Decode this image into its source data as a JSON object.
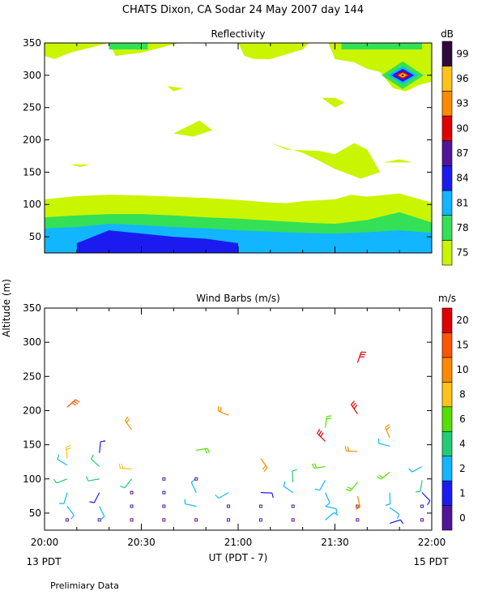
{
  "header": {
    "title": "CHATS Dixon, CA  Sodar  24 May 2007  day 144",
    "ylabel": "Altitude (m)",
    "xlabel": "UT  (PDT - 7)",
    "left_note": "13 PDT",
    "right_note": "15 PDT",
    "footer": "Prelimiary Data"
  },
  "chart_data": [
    {
      "type": "heatmap",
      "title": "Reflectivity",
      "colorbar_unit": "dB",
      "colorbar_ticks": [
        "75",
        "78",
        "81",
        "84",
        "87",
        "90",
        "93",
        "96",
        "99"
      ],
      "colorbar_colors": [
        "#c9f500",
        "#33e056",
        "#12b6ff",
        "#1b1bf0",
        "#52159a",
        "#e10000",
        "#ff8a00",
        "#ffc21a",
        "#2e0b3c"
      ],
      "x_ticks": [
        "20:00",
        "20:30",
        "21:00",
        "21:30",
        "22:00"
      ],
      "x_range_minutes": [
        0,
        120
      ],
      "ylim": [
        25,
        350
      ],
      "y_ticks": [
        50,
        100,
        150,
        200,
        250,
        300,
        350
      ],
      "layers": [
        {
          "level": "75+",
          "color": "#c9f500",
          "top": [
            [
              0,
              108
            ],
            [
              10,
              113
            ],
            [
              20,
              115
            ],
            [
              30,
              114
            ],
            [
              40,
              112
            ],
            [
              50,
              110
            ],
            [
              60,
              107
            ],
            [
              70,
              103
            ],
            [
              75,
              102
            ],
            [
              80,
              105
            ],
            [
              90,
              108
            ],
            [
              95,
              115
            ],
            [
              100,
              112
            ],
            [
              110,
              117
            ],
            [
              120,
              103
            ]
          ]
        },
        {
          "level": "78+",
          "color": "#33e056",
          "top": [
            [
              0,
              80
            ],
            [
              10,
              83
            ],
            [
              20,
              85
            ],
            [
              30,
              85
            ],
            [
              40,
              83
            ],
            [
              50,
              80
            ],
            [
              60,
              78
            ],
            [
              70,
              75
            ],
            [
              80,
              72
            ],
            [
              90,
              70
            ],
            [
              100,
              76
            ],
            [
              110,
              88
            ],
            [
              120,
              72
            ]
          ]
        },
        {
          "level": "81+",
          "color": "#12b6ff",
          "top": [
            [
              0,
              63
            ],
            [
              10,
              65
            ],
            [
              20,
              70
            ],
            [
              30,
              68
            ],
            [
              40,
              65
            ],
            [
              50,
              63
            ],
            [
              60,
              60
            ],
            [
              70,
              58
            ],
            [
              80,
              56
            ],
            [
              90,
              55
            ],
            [
              100,
              57
            ],
            [
              110,
              60
            ],
            [
              120,
              56
            ]
          ]
        },
        {
          "level": "84+",
          "color": "#1b1bf0",
          "top": [
            [
              10,
              40
            ],
            [
              20,
              60
            ],
            [
              30,
              55
            ],
            [
              40,
              50
            ],
            [
              50,
              47
            ],
            [
              60,
              40
            ]
          ]
        }
      ],
      "blobs": [
        {
          "level": "78+",
          "color": "#33e056",
          "time_range": [
            20,
            32
          ],
          "alt_range": [
            340,
            350
          ]
        },
        {
          "level": "78+",
          "color": "#33e056",
          "time_range": [
            92,
            117
          ],
          "alt_range": [
            340,
            350
          ]
        },
        {
          "level": "99",
          "color": "#2e0b3c",
          "time": 111,
          "alt": 300,
          "note": "diamond peak near 21:51 at 300 m"
        }
      ]
    },
    {
      "type": "scatter",
      "title": "Wind Barbs (m/s)",
      "colorbar_unit": "m/s",
      "colorbar_ticks": [
        "0",
        "1",
        "2",
        "4",
        "6",
        "8",
        "10",
        "15",
        "20"
      ],
      "colorbar_colors": [
        "#52159a",
        "#1b1bf0",
        "#12b6ff",
        "#22cc77",
        "#55e000",
        "#ffc21a",
        "#ff8a00",
        "#ff5500",
        "#e10000"
      ],
      "x_ticks": [
        "20:00",
        "20:30",
        "21:00",
        "21:30",
        "22:00"
      ],
      "x_range_minutes": [
        0,
        120
      ],
      "ylim": [
        25,
        350
      ],
      "y_ticks": [
        50,
        100,
        150,
        200,
        250,
        300,
        350
      ],
      "points": [
        {
          "t": 7,
          "alt": 40,
          "speed": 0
        },
        {
          "t": 7,
          "alt": 60,
          "speed": 3
        },
        {
          "t": 7,
          "alt": 80,
          "speed": 3
        },
        {
          "t": 7,
          "alt": 100,
          "speed": 4
        },
        {
          "t": 7,
          "alt": 120,
          "speed": 3
        },
        {
          "t": 7,
          "alt": 130,
          "speed": 9
        },
        {
          "t": 7,
          "alt": 205,
          "speed": 15
        },
        {
          "t": 17,
          "alt": 40,
          "speed": 0
        },
        {
          "t": 17,
          "alt": 60,
          "speed": 3
        },
        {
          "t": 17,
          "alt": 80,
          "speed": 1
        },
        {
          "t": 17,
          "alt": 100,
          "speed": 4
        },
        {
          "t": 17,
          "alt": 118,
          "speed": 4
        },
        {
          "t": 17,
          "alt": 138,
          "speed": 1
        },
        {
          "t": 27,
          "alt": 40,
          "speed": 0
        },
        {
          "t": 27,
          "alt": 60,
          "speed": 0
        },
        {
          "t": 27,
          "alt": 80,
          "speed": 0
        },
        {
          "t": 27,
          "alt": 100,
          "speed": 5
        },
        {
          "t": 27,
          "alt": 115,
          "speed": 9
        },
        {
          "t": 27,
          "alt": 172,
          "speed": 10
        },
        {
          "t": 37,
          "alt": 40,
          "speed": 0
        },
        {
          "t": 37,
          "alt": 60,
          "speed": 0
        },
        {
          "t": 37,
          "alt": 80,
          "speed": 0
        },
        {
          "t": 37,
          "alt": 100,
          "speed": 0
        },
        {
          "t": 47,
          "alt": 40,
          "speed": 0
        },
        {
          "t": 47,
          "alt": 60,
          "speed": 3
        },
        {
          "t": 47,
          "alt": 80,
          "speed": 3
        },
        {
          "t": 47,
          "alt": 100,
          "speed": 0
        },
        {
          "t": 47,
          "alt": 142,
          "speed": 6
        },
        {
          "t": 57,
          "alt": 40,
          "speed": 0
        },
        {
          "t": 57,
          "alt": 60,
          "speed": 0
        },
        {
          "t": 57,
          "alt": 80,
          "speed": 3
        },
        {
          "t": 57,
          "alt": 193,
          "speed": 10
        },
        {
          "t": 67,
          "alt": 40,
          "speed": 0
        },
        {
          "t": 67,
          "alt": 60,
          "speed": 0
        },
        {
          "t": 67,
          "alt": 80,
          "speed": 1
        },
        {
          "t": 67,
          "alt": 130,
          "speed": 10
        },
        {
          "t": 77,
          "alt": 40,
          "speed": 0
        },
        {
          "t": 77,
          "alt": 60,
          "speed": 0
        },
        {
          "t": 77,
          "alt": 80,
          "speed": 3
        },
        {
          "t": 77,
          "alt": 95,
          "speed": 4
        },
        {
          "t": 87,
          "alt": 40,
          "speed": 2
        },
        {
          "t": 87,
          "alt": 60,
          "speed": 3
        },
        {
          "t": 87,
          "alt": 80,
          "speed": 3
        },
        {
          "t": 87,
          "alt": 98,
          "speed": 3
        },
        {
          "t": 87,
          "alt": 118,
          "speed": 6
        },
        {
          "t": 87,
          "alt": 155,
          "speed": 20
        },
        {
          "t": 87,
          "alt": 175,
          "speed": 6
        },
        {
          "t": 97,
          "alt": 40,
          "speed": 0
        },
        {
          "t": 97,
          "alt": 60,
          "speed": 0
        },
        {
          "t": 97,
          "alt": 75,
          "speed": 10
        },
        {
          "t": 97,
          "alt": 95,
          "speed": 6
        },
        {
          "t": 97,
          "alt": 140,
          "speed": 10
        },
        {
          "t": 97,
          "alt": 195,
          "speed": 20
        },
        {
          "t": 97,
          "alt": 270,
          "speed": 20
        },
        {
          "t": 107,
          "alt": 35,
          "speed": 1
        },
        {
          "t": 107,
          "alt": 58,
          "speed": 3
        },
        {
          "t": 107,
          "alt": 80,
          "speed": 3
        },
        {
          "t": 107,
          "alt": 110,
          "speed": 6
        },
        {
          "t": 107,
          "alt": 148,
          "speed": 3
        },
        {
          "t": 107,
          "alt": 160,
          "speed": 10
        },
        {
          "t": 117,
          "alt": 40,
          "speed": 0
        },
        {
          "t": 117,
          "alt": 60,
          "speed": 0
        },
        {
          "t": 117,
          "alt": 80,
          "speed": 1
        },
        {
          "t": 117,
          "alt": 98,
          "speed": 4
        },
        {
          "t": 117,
          "alt": 118,
          "speed": 3
        }
      ]
    }
  ]
}
